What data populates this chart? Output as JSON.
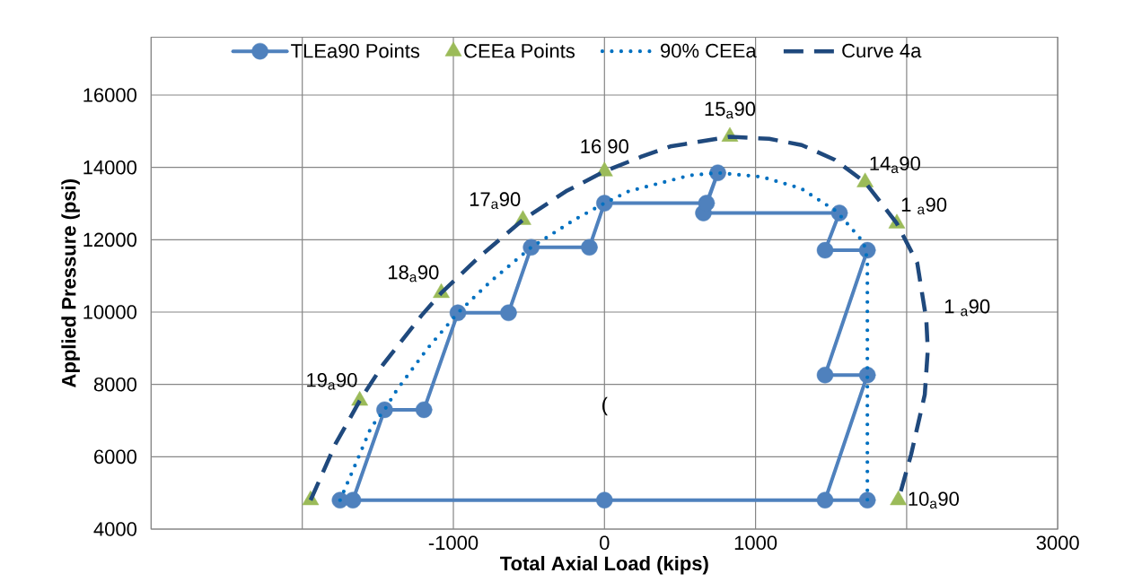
{
  "chart_data": {
    "type": "line",
    "xlabel": "Total Axial Load (kips)",
    "ylabel": "Applied Pressure (psi)",
    "xlim": [
      -3000,
      3000
    ],
    "xticks": [
      {
        "value": -3000,
        "label": null
      },
      {
        "value": -2000,
        "label": null
      },
      -1000,
      0,
      1000,
      {
        "value": 2000,
        "label": null
      },
      3000
    ],
    "ylim": [
      4000,
      17600
    ],
    "yticks": [
      4000,
      6000,
      8000,
      10000,
      12000,
      14000,
      16000
    ],
    "grid": true,
    "legend": "top",
    "series": [
      {
        "name": "TLEa90 Points",
        "color": "#4f81bd",
        "marker": "circle",
        "line_style": "solid",
        "x": [
          0,
          -1750,
          1740,
          1460,
          1740,
          1460,
          1740,
          1460,
          1555,
          655,
          750,
          675,
          0,
          -100,
          -485,
          -635,
          -970,
          -1195,
          -1455,
          -1665
        ],
        "values": [
          4800,
          4800,
          4800,
          4800,
          8260,
          8260,
          11710,
          11710,
          12740,
          12740,
          13850,
          13010,
          13010,
          11790,
          11790,
          9980,
          9980,
          7300,
          7300,
          4800
        ]
      },
      {
        "name": "CEEa Points",
        "type": "scatter",
        "color": "#9bbb59",
        "marker": "triangle",
        "x": [
          1945,
          1935,
          1725,
          830,
          0,
          -540,
          -1080,
          -1620,
          -1945
        ],
        "values": [
          4800,
          12450,
          13590,
          14850,
          13890,
          12550,
          10530,
          7550,
          4800
        ]
      },
      {
        "name": "90% CEEa",
        "color": "#0070c0",
        "marker": "none",
        "line_style": "dotted",
        "x": [
          -1750,
          -1645,
          -1545,
          -1455,
          -1375,
          -1170,
          -970,
          -750,
          -485,
          -200,
          0,
          160,
          565,
          750,
          1040,
          1300,
          1535,
          1715,
          1740,
          1740
        ],
        "values": [
          4800,
          5820,
          6810,
          7300,
          7840,
          9000,
          9980,
          10860,
          11790,
          12550,
          13010,
          13340,
          13780,
          13850,
          13740,
          13420,
          12790,
          11930,
          11440,
          4800
        ]
      },
      {
        "name": "Curve 4a",
        "color": "#1f497d",
        "marker": "none",
        "line_style": "dashed",
        "x": [
          -1945,
          -1880,
          -1780,
          -1685,
          -1620,
          -1465,
          -1210,
          -1080,
          -830,
          -540,
          -255,
          0,
          240,
          435,
          830,
          1090,
          1305,
          1525,
          1725,
          1935,
          2070,
          2130,
          2140,
          2120,
          2030,
          1945
        ],
        "values": [
          4800,
          5410,
          6360,
          7060,
          7550,
          8550,
          9910,
          10530,
          11520,
          12550,
          13340,
          13890,
          14290,
          14580,
          14850,
          14790,
          14620,
          14210,
          13590,
          12450,
          11360,
          9790,
          8960,
          7720,
          6070,
          4800
        ]
      }
    ],
    "annotations": [
      {
        "text": "10$_{a}$90",
        "x": 1945,
        "y": 4800
      },
      {
        "text": "1 $_{a}$90",
        "x": 1935,
        "y": 12450
      },
      {
        "text": "14$_{a}$90",
        "x": 1725,
        "y": 13590
      },
      {
        "text": "15$_{a}$90",
        "x": 830,
        "y": 14850
      },
      {
        "text": "16 90",
        "x": 0,
        "y": 13890
      },
      {
        "text": "17$_{a}$90",
        "x": -540,
        "y": 12550
      },
      {
        "text": "18$_{a}$90",
        "x": -1080,
        "y": 10530
      },
      {
        "text": "19$_{a}$90",
        "x": -1620,
        "y": 7550
      },
      "1 $_{a}$90",
      "("
    ]
  }
}
